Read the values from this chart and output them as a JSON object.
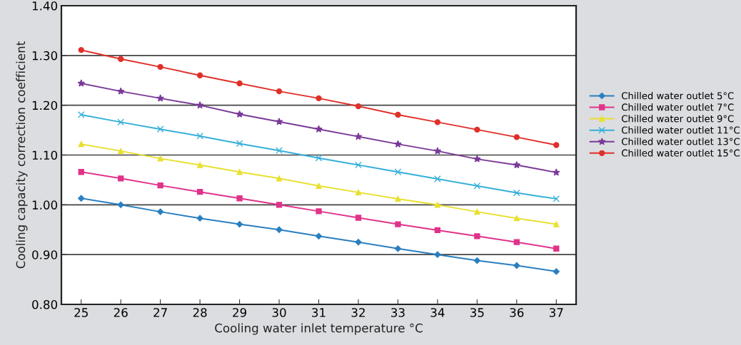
{
  "chart_data": {
    "type": "line",
    "xlabel": "Cooling water inlet temperature °C",
    "ylabel": "Cooling capacity correction coefficient",
    "categories": [
      "25",
      "26",
      "27",
      "28",
      "29",
      "30",
      "31",
      "32",
      "33",
      "34",
      "35",
      "36",
      "37"
    ],
    "ylim": [
      0.8,
      1.4
    ],
    "yticks": [
      {
        "value": 0.8,
        "label": "0.80"
      },
      {
        "value": 0.9,
        "label": "0.90"
      },
      {
        "value": 1.0,
        "label": "1.00"
      },
      {
        "value": 1.1,
        "label": "1.10"
      },
      {
        "value": 1.2,
        "label": "1.20"
      },
      {
        "value": 1.3,
        "label": "1.30"
      },
      {
        "value": 1.4,
        "label": "1.40"
      }
    ],
    "grid": "y",
    "legend": "right",
    "line_style": "solid",
    "series": [
      {
        "name": "Chilled water outlet 5°C",
        "color": "#2a7fc0",
        "marker": "diamond",
        "values": [
          1.013,
          1.0,
          0.986,
          0.973,
          0.961,
          0.95,
          0.937,
          0.925,
          0.912,
          0.9,
          0.888,
          0.878,
          0.866
        ]
      },
      {
        "name": "Chilled water outlet 7°C",
        "color": "#e0338a",
        "marker": "square",
        "values": [
          1.066,
          1.053,
          1.039,
          1.026,
          1.013,
          1.0,
          0.987,
          0.974,
          0.961,
          0.949,
          0.937,
          0.925,
          0.912
        ]
      },
      {
        "name": "Chilled water outlet 9°C",
        "color": "#e8e030",
        "marker": "triangle",
        "values": [
          1.122,
          1.108,
          1.093,
          1.08,
          1.066,
          1.053,
          1.038,
          1.025,
          1.012,
          1.0,
          0.986,
          0.973,
          0.961
        ]
      },
      {
        "name": "Chilled water outlet 11°C",
        "color": "#35b0d8",
        "marker": "cross",
        "values": [
          1.181,
          1.166,
          1.152,
          1.138,
          1.123,
          1.109,
          1.094,
          1.08,
          1.066,
          1.052,
          1.038,
          1.024,
          1.012
        ]
      },
      {
        "name": "Chilled water outlet 13°C",
        "color": "#7a3a98",
        "marker": "star",
        "values": [
          1.244,
          1.228,
          1.214,
          1.2,
          1.182,
          1.167,
          1.152,
          1.137,
          1.122,
          1.108,
          1.092,
          1.08,
          1.065
        ]
      },
      {
        "name": "Chilled water outlet 15°C",
        "color": "#e0302a",
        "marker": "circle",
        "values": [
          1.311,
          1.293,
          1.277,
          1.26,
          1.244,
          1.228,
          1.214,
          1.198,
          1.181,
          1.166,
          1.151,
          1.136,
          1.12
        ]
      }
    ]
  }
}
